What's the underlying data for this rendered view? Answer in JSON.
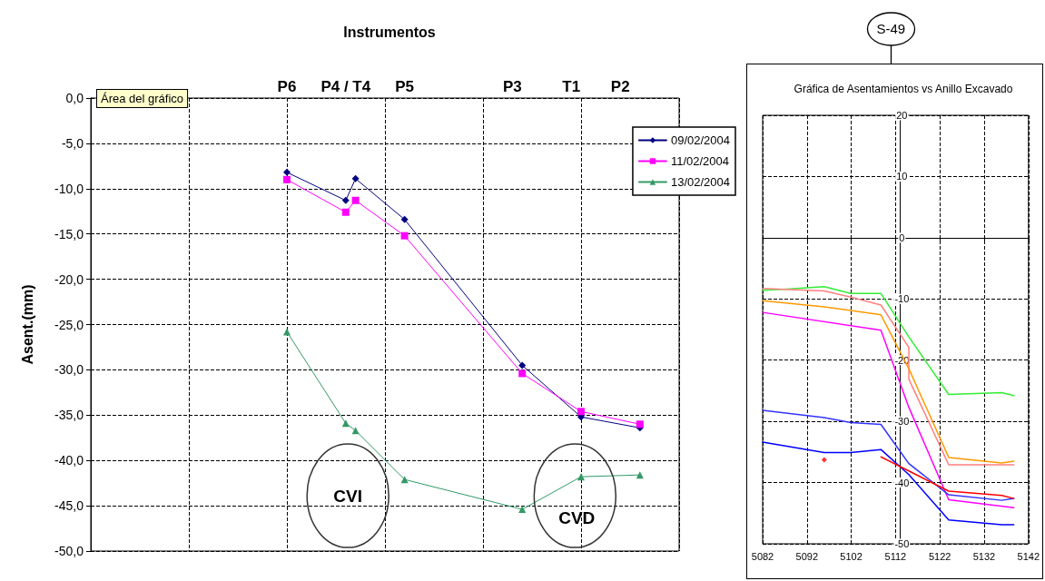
{
  "chart_data": [
    {
      "type": "line",
      "title": "Instrumentos",
      "ylabel": "Asent.(mm)",
      "categories": [
        null,
        null,
        null,
        null,
        null,
        null,
        null,
        null,
        null,
        null,
        null,
        null,
        null,
        null,
        null,
        null,
        null,
        null,
        null,
        null,
        "P6",
        null,
        null,
        null,
        null,
        null,
        "P4 / T4",
        null,
        null,
        null,
        null,
        null,
        "P5",
        null,
        null,
        null,
        null,
        null,
        null,
        null,
        null,
        null,
        null,
        "P3",
        null,
        null,
        null,
        null,
        null,
        "T1",
        null,
        null,
        null,
        null,
        "P2",
        null,
        null,
        null,
        null,
        null,
        null
      ],
      "series": [
        {
          "name": "09/02/2004",
          "color": "#000080",
          "marker": "diamond",
          "values": [
            null,
            null,
            null,
            null,
            null,
            null,
            null,
            null,
            null,
            null,
            null,
            null,
            null,
            null,
            null,
            null,
            null,
            null,
            null,
            null,
            -8.2,
            null,
            null,
            null,
            null,
            null,
            -11.3,
            -8.9,
            null,
            null,
            null,
            null,
            -13.4,
            null,
            null,
            null,
            null,
            null,
            null,
            null,
            null,
            null,
            null,
            null,
            -29.5,
            null,
            null,
            null,
            null,
            null,
            -35.2,
            null,
            null,
            null,
            null,
            null,
            -36.4,
            null,
            null,
            null,
            null
          ]
        },
        {
          "name": "11/02/2004",
          "color": "#ff00ff",
          "marker": "square",
          "values": [
            null,
            null,
            null,
            null,
            null,
            null,
            null,
            null,
            null,
            null,
            null,
            null,
            null,
            null,
            null,
            null,
            null,
            null,
            null,
            null,
            -9.0,
            null,
            null,
            null,
            null,
            null,
            -12.6,
            -11.3,
            null,
            null,
            null,
            null,
            -15.2,
            null,
            null,
            null,
            null,
            null,
            null,
            null,
            null,
            null,
            null,
            null,
            -30.4,
            null,
            null,
            null,
            null,
            null,
            -34.6,
            null,
            null,
            null,
            null,
            null,
            -36.0,
            null,
            null,
            null,
            null
          ]
        },
        {
          "name": "13/02/2004",
          "color": "#339966",
          "marker": "triangle",
          "values": [
            null,
            null,
            null,
            null,
            null,
            null,
            null,
            null,
            null,
            null,
            null,
            null,
            null,
            null,
            null,
            null,
            null,
            null,
            null,
            null,
            -25.8,
            null,
            null,
            null,
            null,
            null,
            -35.9,
            -36.7,
            null,
            null,
            null,
            null,
            -42.1,
            null,
            null,
            null,
            null,
            null,
            null,
            null,
            null,
            null,
            null,
            null,
            -45.4,
            null,
            null,
            null,
            null,
            null,
            -41.8,
            null,
            null,
            null,
            null,
            null,
            -41.6,
            null,
            null,
            null,
            null
          ]
        }
      ],
      "ylim": [
        -50,
        0
      ],
      "yticks": [
        {
          "value": -50,
          "label": "-50,0"
        },
        {
          "value": -45,
          "label": "-45,0"
        },
        {
          "value": -40,
          "label": "-40,0"
        },
        {
          "value": -35,
          "label": "-35,0"
        },
        {
          "value": -30,
          "label": "-30,0"
        },
        {
          "value": -25,
          "label": "-25,0"
        },
        {
          "value": -20,
          "label": "-20,0"
        },
        {
          "value": -15,
          "label": "-15,0"
        },
        {
          "value": -10,
          "label": "-10,0"
        },
        {
          "value": -5,
          "label": "-5,0"
        },
        {
          "value": 0,
          "label": "0,0"
        }
      ],
      "grid": true,
      "legend": "right",
      "line_style": "solid",
      "annotations": [
        "CVI",
        "CVD",
        "Área del gráfico"
      ]
    },
    {
      "type": "line",
      "title": "Gráfica de Asentamientos vs Anillo Excavado",
      "marker": "none",
      "line_style": "solid",
      "grid": true,
      "series": [
        {
          "color": "#33ee33",
          "x": [
            5082,
            5087.4,
            5095.9,
            5101.9,
            5108.7,
            5115.0,
            5124.0,
            5136.0,
            5138.7
          ],
          "values": [
            -8.6,
            -8.4,
            -8.0,
            -9.1,
            -9.1,
            -16.2,
            -25.6,
            -25.3,
            -25.8
          ]
        },
        {
          "color": "#ff8080",
          "x": [
            5082,
            5095.9,
            5101.9,
            5108.7,
            5115.0,
            5115.0,
            5124.0,
            5136.0,
            5138.7
          ],
          "values": [
            -8.3,
            -8.7,
            -9.7,
            -11.0,
            -17.9,
            -23.1,
            -37.1,
            -37.1,
            -37.1
          ]
        },
        {
          "color": "#ff9900",
          "x": [
            5082,
            5095.9,
            5101.9,
            5108.7,
            5115.0,
            5124.0,
            5136.0,
            5138.7
          ],
          "values": [
            -10.3,
            -11.3,
            -11.9,
            -12.6,
            -21.4,
            -35.9,
            -36.8,
            -36.5
          ]
        },
        {
          "color": "#ff00ff",
          "x": [
            5082,
            5108.7,
            5115.0,
            5124.0,
            5138.7
          ],
          "values": [
            -12.2,
            -15.1,
            -27.7,
            -42.8,
            -44.1
          ]
        },
        {
          "color": "#3333ff",
          "x": [
            5082,
            5095.9,
            5101.9,
            5108.7,
            5115.0,
            5124.0,
            5136.0,
            5138.7
          ],
          "values": [
            -28.2,
            -29.4,
            -30.2,
            -30.5,
            -36.9,
            -42.0,
            -42.9,
            -42.6
          ]
        },
        {
          "color": "#0000ff",
          "x": [
            5082,
            5095.9,
            5101.9,
            5108.7,
            5115.0,
            5124.0,
            5136.0,
            5138.7
          ],
          "values": [
            -33.4,
            -35.1,
            -35.1,
            -34.6,
            -38.7,
            -46.1,
            -46.9,
            -46.9
          ]
        },
        {
          "color": "#ff0000",
          "x": [
            5108.7,
            5115.0,
            5124.0,
            5136.0,
            5138.7
          ],
          "values": [
            -35.8,
            -38.1,
            -41.4,
            -42.1,
            -42.6
          ]
        },
        {
          "type": "scatter",
          "marker": "diamond",
          "color": "#ff0000",
          "x": [
            5095.9
          ],
          "values": [
            -36.3
          ]
        }
      ],
      "xlim": [
        5082,
        5142
      ],
      "xticks": [
        5082,
        5092,
        5102,
        5112,
        5122,
        5132,
        5142
      ],
      "ylim": [
        -50,
        20
      ],
      "yticks": [
        -50,
        -40,
        -30,
        -20,
        -10,
        0,
        10,
        20
      ],
      "annotations": [
        "S-49"
      ]
    }
  ]
}
